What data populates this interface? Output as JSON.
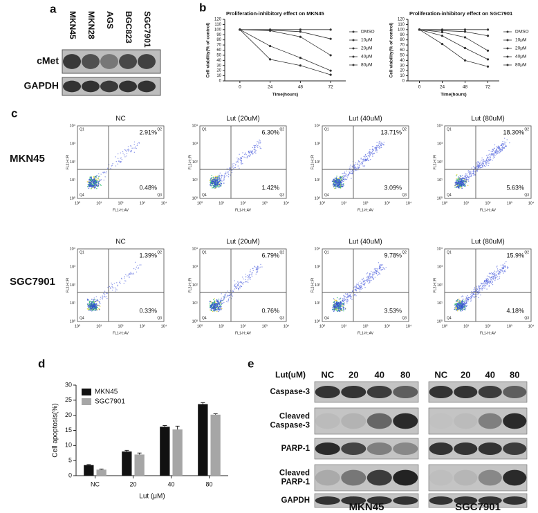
{
  "panel_labels": [
    "a",
    "b",
    "c",
    "d",
    "e"
  ],
  "blot_a": {
    "lanes": [
      "MKN45",
      "MKN28",
      "AGS",
      "BGC823",
      "SGC7901"
    ],
    "rows": [
      "cMet",
      "GAPDH"
    ]
  },
  "flow": {
    "cell_lines": [
      "MKN45",
      "SGC7901"
    ],
    "conditions": [
      "NC",
      "Lut (20uM)",
      "Lut (40uM)",
      "Lut (80uM)"
    ],
    "q2": [
      [
        "2.91%",
        "6.30%",
        "13.71%",
        "18.30%"
      ],
      [
        "1.39%",
        "6.79%",
        "9.78%",
        "15.9%"
      ]
    ],
    "q3": [
      [
        "0.48%",
        "1.42%",
        "3.09%",
        "5.63%"
      ],
      [
        "0.33%",
        "0.76%",
        "3.53%",
        "4.18%"
      ]
    ],
    "quadrants": [
      "Q1",
      "Q2",
      "Q3",
      "Q4"
    ],
    "ticks": [
      "10⁰",
      "10¹",
      "10²",
      "10³",
      "10⁴"
    ],
    "xlabel": "FL1-H::AV",
    "ylabel": "FL2-H::PI"
  },
  "blot_e": {
    "header": "Lut(uM)",
    "lanes": [
      "NC",
      "20",
      "40",
      "80"
    ],
    "rows": [
      [
        "Caspase-3"
      ],
      [
        "Cleaved",
        "Caspase-3"
      ],
      [
        "PARP-1"
      ],
      [
        "Cleaved",
        "PARP-1"
      ],
      [
        "GAPDH"
      ]
    ],
    "cells": [
      "MKN45",
      "SGC7901"
    ]
  },
  "chart_data": [
    {
      "type": "line",
      "title": "Proliferation-inhibitory effect on MKN45",
      "xlabel": "Time(hours)",
      "ylabel": "Cell viability(% of control)",
      "x": [
        0,
        24,
        48,
        72
      ],
      "xlim": [
        -12,
        84
      ],
      "xticks": [
        0,
        24,
        48,
        72
      ],
      "ylim": [
        0,
        120
      ],
      "yticks": [
        0,
        10,
        20,
        30,
        40,
        50,
        60,
        70,
        80,
        90,
        100,
        110,
        120
      ],
      "series": [
        {
          "name": "DMSO",
          "color": "#333333",
          "values": [
            100,
            100,
            100,
            100
          ]
        },
        {
          "name": "10μM",
          "color": "#333333",
          "values": [
            100,
            99,
            96,
            82
          ]
        },
        {
          "name": "20μM",
          "color": "#333333",
          "values": [
            100,
            98,
            86,
            50
          ]
        },
        {
          "name": "40μM",
          "color": "#333333",
          "values": [
            100,
            68,
            45,
            20
          ]
        },
        {
          "name": "80μM",
          "color": "#333333",
          "values": [
            100,
            42,
            30,
            12
          ]
        }
      ]
    },
    {
      "type": "line",
      "title": "Proliferation-inhibitory effect on SGC7901",
      "xlabel": "Time(hours)",
      "ylabel": "Cell viability(% of control)",
      "x": [
        0,
        24,
        48,
        72
      ],
      "xlim": [
        -12,
        84
      ],
      "xticks": [
        0,
        24,
        48,
        72
      ],
      "ylim": [
        0,
        120
      ],
      "yticks": [
        0,
        10,
        20,
        30,
        40,
        50,
        60,
        70,
        80,
        90,
        100,
        110,
        120
      ],
      "series": [
        {
          "name": "DMSO",
          "color": "#333333",
          "values": [
            100,
            100,
            100,
            100
          ]
        },
        {
          "name": "10μM",
          "color": "#333333",
          "values": [
            100,
            98,
            96,
            88
          ]
        },
        {
          "name": "20μM",
          "color": "#333333",
          "values": [
            100,
            95,
            85,
            59
          ]
        },
        {
          "name": "40μM",
          "color": "#333333",
          "values": [
            100,
            88,
            64,
            42
          ]
        },
        {
          "name": "80μM",
          "color": "#333333",
          "values": [
            100,
            72,
            40,
            28
          ]
        }
      ]
    },
    {
      "type": "bar",
      "ylabel": "Cell apoptosis(%)",
      "xlabel": "Lut (μM)",
      "categories": [
        "NC",
        "20",
        "40",
        "80"
      ],
      "ylim": [
        0,
        30
      ],
      "yticks": [
        0,
        5,
        10,
        15,
        20,
        25,
        30
      ],
      "series": [
        {
          "name": "MKN45",
          "color": "#111111",
          "values": [
            3.5,
            8,
            16.2,
            23.7
          ],
          "errors": [
            0.2,
            0.4,
            0.4,
            0.5
          ]
        },
        {
          "name": "SGC7901",
          "color": "#a6a6a6",
          "values": [
            2,
            7,
            15.3,
            20.2
          ],
          "errors": [
            0.2,
            0.5,
            1.1,
            0.3
          ]
        }
      ]
    }
  ]
}
